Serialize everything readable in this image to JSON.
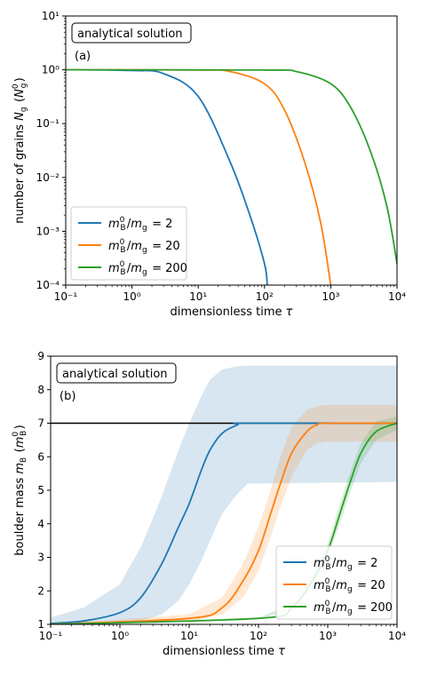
{
  "chart_data": [
    {
      "type": "line",
      "panel_label": "(a)",
      "annotation": "analytical solution",
      "xlabel": "dimensionless time τ",
      "ylabel": "number of grains N_g (N_g^0)",
      "xscale": "log",
      "yscale": "log",
      "xlim": [
        0.1,
        10000
      ],
      "ylim": [
        0.0001,
        10
      ],
      "x_ticks": [
        "10⁻¹",
        "10⁰",
        "10¹",
        "10²",
        "10³",
        "10⁴"
      ],
      "y_ticks": [
        "10⁻⁴",
        "10⁻³",
        "10⁻²",
        "10⁻¹",
        "10⁰",
        "10¹"
      ],
      "legend_position": "lower-left",
      "series": [
        {
          "name": "m_B^0/m_g = 2",
          "color": "#1f77b4",
          "x": [
            0.1,
            1,
            3,
            10,
            30,
            60,
            100,
            110
          ],
          "y": [
            1.0,
            0.97,
            0.85,
            0.32,
            0.02,
            0.002,
            0.00025,
            0.0001
          ]
        },
        {
          "name": "m_B^0/m_g = 20",
          "color": "#ff7f0e",
          "x": [
            0.1,
            10,
            30,
            100,
            200,
            400,
            700,
            1000
          ],
          "y": [
            1.0,
            0.99,
            0.93,
            0.55,
            0.18,
            0.02,
            0.0015,
            0.0001
          ]
        },
        {
          "name": "m_B^0/m_g = 200",
          "color": "#2ca02c",
          "x": [
            0.1,
            100,
            300,
            1000,
            2000,
            4000,
            7000,
            10000
          ],
          "y": [
            1.0,
            0.99,
            0.93,
            0.55,
            0.2,
            0.03,
            0.003,
            0.00025
          ]
        }
      ]
    },
    {
      "type": "line",
      "panel_label": "(b)",
      "annotation": "analytical solution",
      "xlabel": "dimensionless time τ",
      "ylabel": "boulder mass m_B (m_B^0)",
      "xscale": "log",
      "yscale": "linear",
      "xlim": [
        0.1,
        10000
      ],
      "ylim": [
        1,
        9
      ],
      "x_ticks": [
        "10⁻¹",
        "10⁰",
        "10¹",
        "10²",
        "10³",
        "10⁴"
      ],
      "y_ticks": [
        "1",
        "2",
        "3",
        "4",
        "5",
        "6",
        "7",
        "8",
        "9"
      ],
      "reference_line": {
        "y": 7,
        "color": "#000000"
      },
      "legend_position": "lower-right",
      "series": [
        {
          "name": "m_B^0/m_g = 2",
          "color": "#1f77b4",
          "x": [
            0.1,
            0.3,
            1,
            2,
            4,
            7,
            10,
            15,
            20,
            30,
            50,
            70,
            10000
          ],
          "y": [
            1.03,
            1.1,
            1.35,
            1.8,
            2.8,
            3.9,
            4.6,
            5.6,
            6.2,
            6.7,
            6.95,
            7.0,
            7.0
          ],
          "band_upper": [
            1.2,
            1.5,
            2.2,
            3.3,
            4.8,
            6.2,
            7.0,
            7.8,
            8.3,
            8.6,
            8.7,
            8.72,
            8.72
          ],
          "band_lower": [
            1.0,
            1.0,
            1.03,
            1.1,
            1.3,
            1.7,
            2.2,
            2.9,
            3.5,
            4.3,
            4.9,
            5.2,
            5.25
          ]
        },
        {
          "name": "m_B^0/m_g = 20",
          "color": "#ff7f0e",
          "x": [
            0.1,
            10,
            30,
            60,
            100,
            150,
            200,
            300,
            500,
            700,
            1000,
            10000
          ],
          "y": [
            1.0,
            1.18,
            1.5,
            2.3,
            3.2,
            4.3,
            5.1,
            6.1,
            6.75,
            6.95,
            7.0,
            7.0
          ],
          "band_upper": [
            1.0,
            1.3,
            1.8,
            2.8,
            3.9,
            5.0,
            5.9,
            6.9,
            7.4,
            7.5,
            7.55,
            7.55
          ],
          "band_lower": [
            1.0,
            1.08,
            1.3,
            1.8,
            2.6,
            3.6,
            4.4,
            5.4,
            6.2,
            6.4,
            6.45,
            6.45
          ]
        },
        {
          "name": "m_B^0/m_g = 200",
          "color": "#2ca02c",
          "x": [
            0.1,
            100,
            300,
            600,
            1000,
            1500,
            2000,
            3000,
            5000,
            10000
          ],
          "y": [
            1.0,
            1.18,
            1.5,
            2.3,
            3.2,
            4.3,
            5.1,
            6.1,
            6.75,
            7.0
          ],
          "band_upper": [
            1.0,
            1.2,
            1.6,
            2.5,
            3.4,
            4.6,
            5.4,
            6.4,
            7.05,
            7.2
          ],
          "band_lower": [
            1.0,
            1.16,
            1.42,
            2.1,
            3.0,
            4.0,
            4.8,
            5.8,
            6.5,
            6.8
          ]
        }
      ]
    }
  ]
}
